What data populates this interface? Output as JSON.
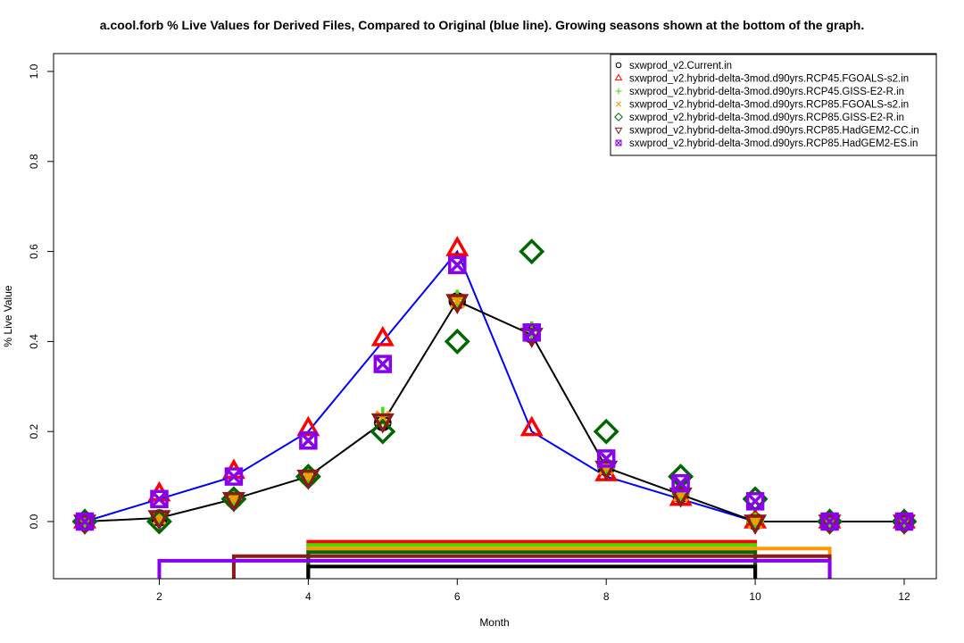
{
  "chart_data": {
    "type": "line",
    "title": "a.cool.forb   % Live Values for Derived Files, Compared to Original (blue line). Growing seasons shown at the bottom of the graph.",
    "xlabel": "Month",
    "ylabel": "% Live Value",
    "xlim": [
      1,
      12
    ],
    "ylim": [
      0,
      1.0
    ],
    "x_ticks": [
      2,
      4,
      6,
      8,
      10,
      12
    ],
    "y_ticks": [
      0.0,
      0.2,
      0.4,
      0.6,
      0.8,
      1.0
    ],
    "y_tick_labels": [
      "0.0",
      "0.2",
      "0.4",
      "0.6",
      "0.8",
      "1.0"
    ],
    "legend_position": "top-right",
    "x": [
      1,
      2,
      3,
      4,
      5,
      6,
      7,
      8,
      9,
      10,
      11,
      12
    ],
    "original_line": {
      "color": "#0000ff",
      "values": [
        0,
        0.05,
        0.1,
        0.2,
        0.4,
        0.6,
        0.2,
        0.1,
        0.05,
        0,
        0,
        0
      ]
    },
    "series": [
      {
        "name": "sxwprod_v2.Current.in",
        "color": "#000000",
        "marker": "circle",
        "line": true,
        "values": [
          0,
          0.008,
          0.05,
          0.1,
          0.22,
          0.49,
          0.415,
          0.12,
          0.06,
          0,
          0,
          0
        ]
      },
      {
        "name": "sxwprod_v2.hybrid-delta-3mod.d90yrs.RCP45.FGOALS-s2.in",
        "color": "#ff0000",
        "marker": "triangle",
        "values": [
          0,
          0.06,
          0.11,
          0.205,
          0.405,
          0.605,
          0.205,
          0.105,
          0.05,
          0,
          0,
          0
        ]
      },
      {
        "name": "sxwprod_v2.hybrid-delta-3mod.d90yrs.RCP45.GISS-E2-R.in",
        "color": "#44dd00",
        "marker": "plus",
        "values": [
          0,
          0.008,
          0.05,
          0.1,
          0.235,
          0.495,
          0.425,
          0.12,
          0.06,
          0,
          0,
          0
        ]
      },
      {
        "name": "sxwprod_v2.hybrid-delta-3mod.d90yrs.RCP85.FGOALS-s2.in",
        "color": "#ff9900",
        "marker": "cross",
        "values": [
          0,
          0.008,
          0.05,
          0.1,
          0.23,
          0.49,
          0.42,
          0.12,
          0.06,
          0,
          0,
          0
        ]
      },
      {
        "name": "sxwprod_v2.hybrid-delta-3mod.d90yrs.RCP85.GISS-E2-R.in",
        "color": "#006600",
        "marker": "diamond",
        "values": [
          0,
          0,
          0.05,
          0.1,
          0.2,
          0.4,
          0.6,
          0.2,
          0.1,
          0.05,
          0,
          0
        ]
      },
      {
        "name": "sxwprod_v2.hybrid-delta-3mod.d90yrs.RCP85.HadGEM2-CC.in",
        "color": "#8b1a1a",
        "marker": "triangle-down",
        "values": [
          0,
          0.01,
          0.05,
          0.1,
          0.225,
          0.49,
          0.415,
          0.12,
          0.06,
          0,
          0,
          0
        ]
      },
      {
        "name": "sxwprod_v2.hybrid-delta-3mod.d90yrs.RCP85.HadGEM2-ES.in",
        "color": "#8800ee",
        "marker": "square-x",
        "values": [
          0,
          0.05,
          0.1,
          0.18,
          0.35,
          0.57,
          0.42,
          0.14,
          0.085,
          0.045,
          0,
          0
        ]
      }
    ],
    "growing_seasons": [
      {
        "series": 1,
        "start": 4,
        "end": 10,
        "y": -0.045
      },
      {
        "series": 2,
        "start": 4,
        "end": 10,
        "y": -0.052
      },
      {
        "series": 3,
        "start": 4,
        "end": 11,
        "y": -0.06
      },
      {
        "series": 4,
        "start": 4,
        "end": 10,
        "y": -0.068
      },
      {
        "series": 5,
        "start": 3,
        "end": 11,
        "y": -0.077
      },
      {
        "series": 6,
        "start": 2,
        "end": 11,
        "y": -0.087
      },
      {
        "series": 0,
        "start": 4,
        "end": 10,
        "y": -0.1
      }
    ]
  }
}
